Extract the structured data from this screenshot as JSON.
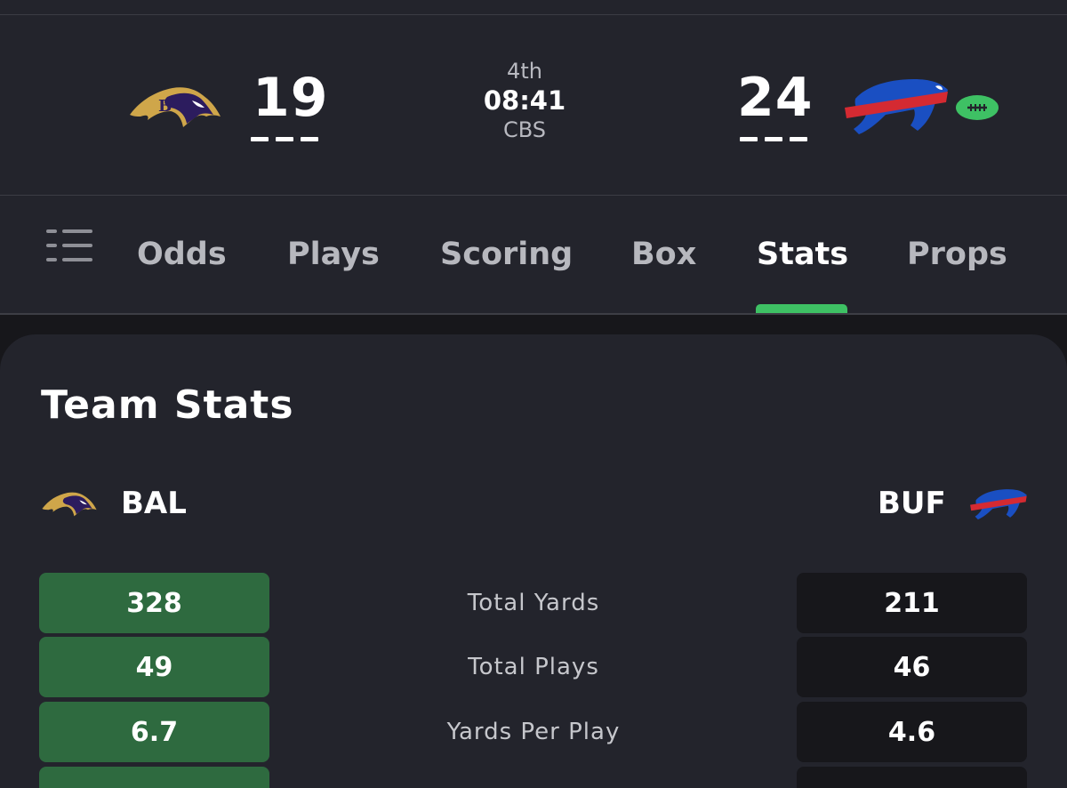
{
  "game": {
    "period": "4th",
    "clock": "08:41",
    "network": "CBS",
    "away": {
      "abbr": "BAL",
      "score": "19",
      "logo_icon": "ravens-logo-icon"
    },
    "home": {
      "abbr": "BUF",
      "score": "24",
      "logo_icon": "bills-logo-icon"
    },
    "possession_icon": "football-icon"
  },
  "tabs": [
    {
      "label": "Odds",
      "active": false
    },
    {
      "label": "Plays",
      "active": false
    },
    {
      "label": "Scoring",
      "active": false
    },
    {
      "label": "Box",
      "active": false
    },
    {
      "label": "Stats",
      "active": true
    },
    {
      "label": "Props",
      "active": false
    }
  ],
  "section_title": "Team Stats",
  "stats": [
    {
      "label": "Total Yards",
      "bal": "328",
      "buf": "211",
      "leader": "bal"
    },
    {
      "label": "Total Plays",
      "bal": "49",
      "buf": "46",
      "leader": "bal"
    },
    {
      "label": "Yards Per Play",
      "bal": "6.7",
      "buf": "4.6",
      "leader": "bal"
    },
    {
      "label": "",
      "bal": "",
      "buf": "",
      "leader": "bal"
    }
  ],
  "colors": {
    "background": "#23242c",
    "accent": "#3ec164",
    "lead_box": "#2e6a3f",
    "trail_box": "#17171b"
  }
}
